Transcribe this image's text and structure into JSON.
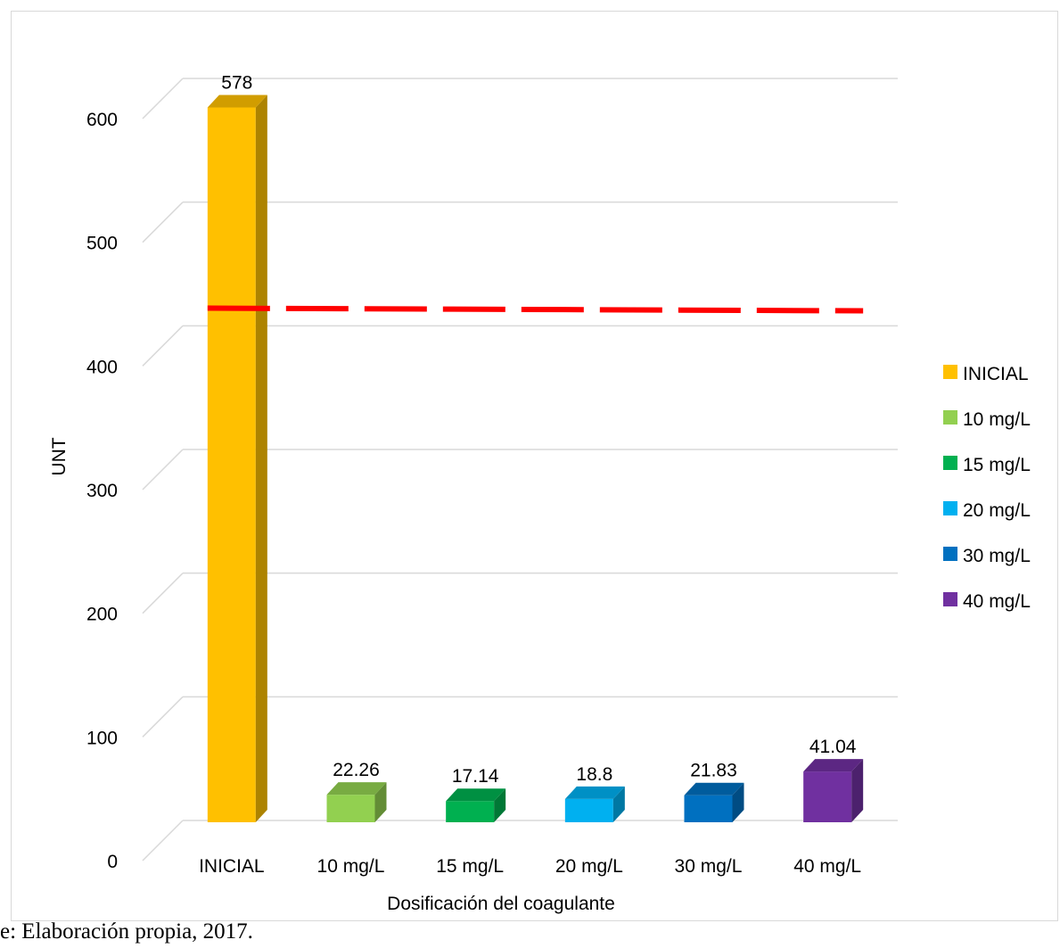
{
  "chart_data": {
    "type": "bar",
    "categories": [
      "INICIAL",
      "10 mg/L",
      "15 mg/L",
      "20 mg/L",
      "30 mg/L",
      "40 mg/L"
    ],
    "values": [
      578,
      22.26,
      17.14,
      18.8,
      21.83,
      41.04
    ],
    "value_labels": [
      "578",
      "22.26",
      "17.14",
      "18.8",
      "21.83",
      "41.04"
    ],
    "colors": [
      "#ffc000",
      "#92d050",
      "#00b050",
      "#00b0f0",
      "#0070c0",
      "#7030a0"
    ],
    "xlabel": "Dosificación del coagulante",
    "ylabel": "UNT",
    "ylim": [
      0,
      600
    ],
    "yticks": [
      0,
      100,
      200,
      300,
      400,
      500,
      600
    ],
    "ytick_labels": [
      "0",
      "100",
      "200",
      "300",
      "400",
      "500",
      "600"
    ],
    "reference_line": {
      "value": 415,
      "color": "#ff0000",
      "style": "dashed"
    },
    "grid": true,
    "legend": {
      "placement": "right",
      "entries": [
        "INICIAL",
        "10 mg/L",
        "15 mg/L",
        "20 mg/L",
        "30 mg/L",
        "40 mg/L"
      ]
    }
  },
  "source_note": "e: Elaboración propia, 2017."
}
